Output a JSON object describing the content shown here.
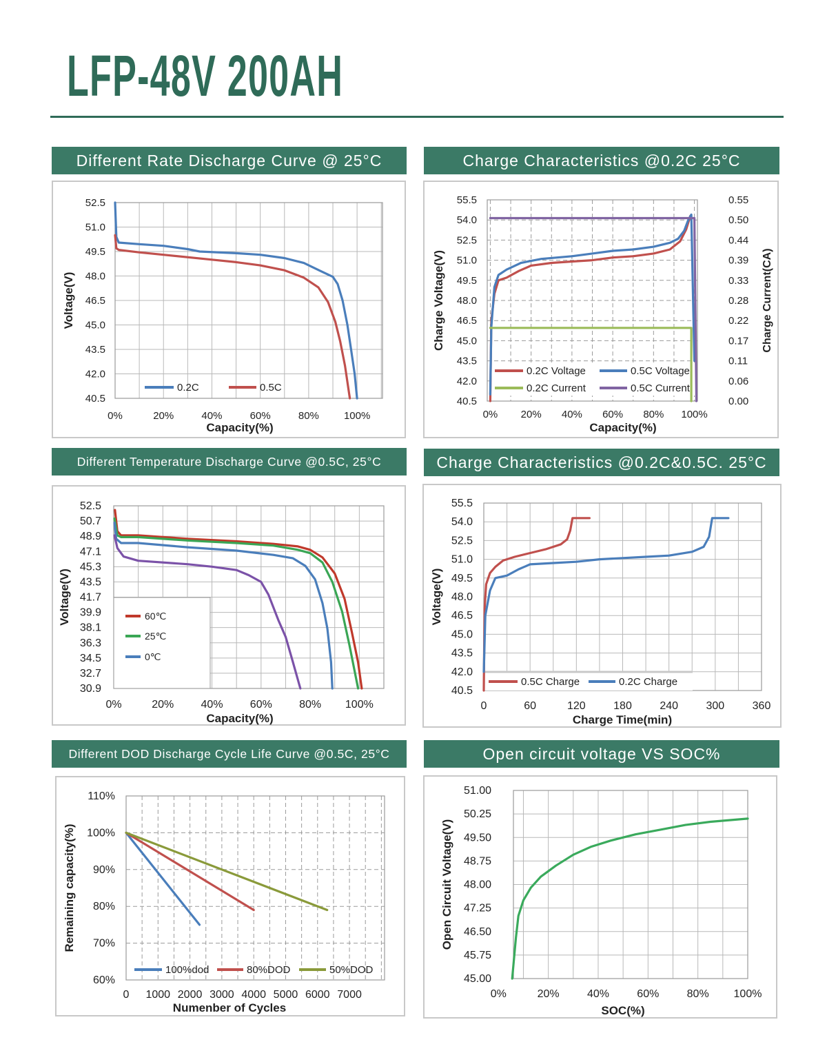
{
  "page_title": "LFP-48V 200AH",
  "colors": {
    "brand": "#2f6b58",
    "header_fill": "#3b7a66",
    "blue": "#4a7ebb",
    "red": "#c0504d",
    "green": "#9bbb59",
    "purple": "#8064a2",
    "green_temp": "#3aa655",
    "green_ocv": "#3aaa5c"
  },
  "chart_data": [
    {
      "title": "Different Rate Discharge Curve @ 25°C",
      "type": "line",
      "xlabel": "Capacity(%)",
      "ylabel": "Voltage(V)",
      "xlim": [
        0,
        110.5
      ],
      "ylim": [
        40.5,
        52.5
      ],
      "xticks": [
        "0%",
        "20%",
        "40%",
        "60%",
        "80%",
        "100%"
      ],
      "yticks": [
        "52.5",
        "51.0",
        "49.5",
        "48.0",
        "46.5",
        "45.0",
        "43.5",
        "42.0",
        "40.5"
      ],
      "grid": true,
      "legend": "bottom",
      "series": [
        {
          "name": "0.2C",
          "color": "#4a7ebb",
          "points": [
            [
              0,
              52.5
            ],
            [
              0.5,
              50.4
            ],
            [
              1.5,
              50.05
            ],
            [
              10,
              49.95
            ],
            [
              20,
              49.85
            ],
            [
              30,
              49.65
            ],
            [
              35,
              49.5
            ],
            [
              50,
              49.4
            ],
            [
              60,
              49.3
            ],
            [
              70,
              49.1
            ],
            [
              78,
              48.8
            ],
            [
              85,
              48.3
            ],
            [
              90,
              47.95
            ],
            [
              92,
              47.5
            ],
            [
              94,
              46.5
            ],
            [
              96,
              45.0
            ],
            [
              97.5,
              43.5
            ],
            [
              99,
              42.0
            ],
            [
              100,
              40.5
            ]
          ]
        },
        {
          "name": "0.5C",
          "color": "#c0504d",
          "points": [
            [
              0,
              50.5
            ],
            [
              0.5,
              49.7
            ],
            [
              1.5,
              49.6
            ],
            [
              10,
              49.45
            ],
            [
              20,
              49.3
            ],
            [
              40,
              49.0
            ],
            [
              50,
              48.85
            ],
            [
              60,
              48.65
            ],
            [
              70,
              48.35
            ],
            [
              78,
              47.9
            ],
            [
              84,
              47.3
            ],
            [
              88,
              46.4
            ],
            [
              91,
              45.2
            ],
            [
              93,
              44.0
            ],
            [
              95,
              42.5
            ],
            [
              97,
              40.5
            ]
          ]
        }
      ]
    },
    {
      "title": "Charge Characteristics @0.2C    25°C",
      "type": "line",
      "xlabel": "Capacity(%)",
      "ylabel": "Charge Voltage(V)",
      "y2label": "Charge Current(CA)",
      "xlim": [
        -1.5,
        101.5
      ],
      "ylim": [
        40.5,
        55.5
      ],
      "y2lim": [
        0,
        0.55
      ],
      "xticks": [
        "0%",
        "20%",
        "40%",
        "60%",
        "80%",
        "100%"
      ],
      "yticks": [
        "55.5",
        "54.0",
        "52.5",
        "51.0",
        "49.5",
        "48.0",
        "46.5",
        "45.0",
        "43.5",
        "42.0",
        "40.5"
      ],
      "y2ticks": [
        "0.55",
        "0.50",
        "0.44",
        "0.39",
        "0.33",
        "0.28",
        "0.22",
        "0.17",
        "0.11",
        "0.06",
        "0.00"
      ],
      "grid": "dashed",
      "legend": "bottom",
      "series": [
        {
          "name": "0.2C Voltage",
          "color": "#c0504d",
          "axis": "left",
          "points": [
            [
              0,
              40.5
            ],
            [
              0.5,
              46.5
            ],
            [
              2,
              48.5
            ],
            [
              4,
              49.5
            ],
            [
              8,
              49.7
            ],
            [
              14,
              50.2
            ],
            [
              20,
              50.6
            ],
            [
              30,
              50.8
            ],
            [
              40,
              50.9
            ],
            [
              50,
              51.0
            ],
            [
              60,
              51.2
            ],
            [
              70,
              51.3
            ],
            [
              80,
              51.5
            ],
            [
              88,
              51.8
            ],
            [
              93,
              52.4
            ],
            [
              96,
              53.3
            ],
            [
              98,
              54.3
            ]
          ]
        },
        {
          "name": "0.5C Voltage",
          "color": "#4a7ebb",
          "axis": "left",
          "points": [
            [
              0,
              41
            ],
            [
              0.5,
              46
            ],
            [
              2,
              49
            ],
            [
              4,
              49.9
            ],
            [
              8,
              50.3
            ],
            [
              15,
              50.8
            ],
            [
              25,
              51.1
            ],
            [
              40,
              51.3
            ],
            [
              50,
              51.5
            ],
            [
              60,
              51.7
            ],
            [
              70,
              51.8
            ],
            [
              80,
              52.0
            ],
            [
              88,
              52.3
            ],
            [
              92,
              52.6
            ],
            [
              95,
              53.2
            ],
            [
              97,
              54.0
            ],
            [
              98.5,
              54.4
            ],
            [
              99.5,
              47
            ],
            [
              100,
              43.5
            ]
          ]
        },
        {
          "name": "0.2C Current",
          "color": "#9bbb59",
          "axis": "right",
          "points": [
            [
              0,
              0.2
            ],
            [
              98.5,
              0.2
            ],
            [
              98.5,
              0.0
            ]
          ]
        },
        {
          "name": "0.5C Current",
          "color": "#8064a2",
          "axis": "right",
          "points": [
            [
              0,
              0.5
            ],
            [
              99,
              0.5
            ],
            [
              100,
              0.5
            ],
            [
              101,
              0.0
            ]
          ]
        }
      ]
    },
    {
      "title": "Different Temperature Discharge Curve @0.5C, 25°C",
      "type": "line",
      "xlabel": "Capacity(%)",
      "ylabel": "Voltage(V)",
      "xlim": [
        0,
        110
      ],
      "ylim": [
        30.9,
        52.5
      ],
      "xticks": [
        "0%",
        "20%",
        "40%",
        "60%",
        "80%",
        "100%"
      ],
      "yticks": [
        "52.5",
        "50.7",
        "48.9",
        "47.1",
        "45.3",
        "43.5",
        "41.7",
        "39.9",
        "38.1",
        "36.3",
        "34.5",
        "32.7",
        "30.9"
      ],
      "grid": true,
      "legend": "lower-left",
      "series": [
        {
          "name": "60℃",
          "color": "#c0392b",
          "points": [
            [
              0.5,
              52.0
            ],
            [
              1.5,
              49.5
            ],
            [
              3,
              49.0
            ],
            [
              10,
              49.0
            ],
            [
              30,
              48.6
            ],
            [
              50,
              48.3
            ],
            [
              65,
              48.0
            ],
            [
              75,
              47.7
            ],
            [
              80,
              47.3
            ],
            [
              85,
              46.4
            ],
            [
              90,
              44.5
            ],
            [
              94,
              41.5
            ],
            [
              97,
              37.5
            ],
            [
              99.5,
              34
            ],
            [
              101,
              30.9
            ]
          ]
        },
        {
          "name": "25℃",
          "color": "#3aa655",
          "points": [
            [
              0.3,
              51
            ],
            [
              1.5,
              49.0
            ],
            [
              3,
              48.8
            ],
            [
              10,
              48.8
            ],
            [
              30,
              48.4
            ],
            [
              50,
              48.1
            ],
            [
              65,
              47.8
            ],
            [
              75,
              47.3
            ],
            [
              80,
              46.9
            ],
            [
              85,
              45.8
            ],
            [
              89,
              43.5
            ],
            [
              93,
              40.0
            ],
            [
              96,
              36
            ],
            [
              99.5,
              30.9
            ]
          ]
        },
        {
          "name": "0℃",
          "color": "#4a7ebb",
          "points": [
            [
              0.3,
              50.5
            ],
            [
              1,
              48.6
            ],
            [
              3,
              48.1
            ],
            [
              10,
              48.1
            ],
            [
              30,
              47.6
            ],
            [
              50,
              47.2
            ],
            [
              65,
              46.7
            ],
            [
              73,
              46.3
            ],
            [
              78,
              45.4
            ],
            [
              82,
              43.8
            ],
            [
              85,
              41
            ],
            [
              87,
              38
            ],
            [
              88.5,
              34
            ],
            [
              89,
              30.9
            ]
          ]
        },
        {
          "color": "#7b52a8",
          "points": [
            [
              0.3,
              49
            ],
            [
              1.5,
              47.5
            ],
            [
              4,
              46.5
            ],
            [
              10,
              46.0
            ],
            [
              30,
              45.6
            ],
            [
              40,
              45.3
            ],
            [
              50,
              44.9
            ],
            [
              55,
              44.3
            ],
            [
              60,
              43.5
            ],
            [
              63,
              42
            ],
            [
              67,
              39
            ],
            [
              70,
              37
            ],
            [
              73,
              34
            ],
            [
              76,
              30.9
            ]
          ]
        }
      ]
    },
    {
      "title": "Charge Characteristics @0.2C&0.5C. 25°C",
      "type": "line",
      "xlabel": "Charge Time(min)",
      "ylabel": "Voltage(V)",
      "xlim": [
        0,
        360
      ],
      "ylim": [
        40.5,
        55.5
      ],
      "xticks": [
        "0",
        "60",
        "120",
        "180",
        "240",
        "300",
        "360"
      ],
      "yticks": [
        "55.5",
        "54.0",
        "52.5",
        "51.0",
        "49.5",
        "48.0",
        "46.5",
        "45.0",
        "43.5",
        "42.0",
        "40.5"
      ],
      "grid": true,
      "legend": "bottom",
      "series": [
        {
          "name": "0.5C Charge",
          "color": "#c0504d",
          "points": [
            [
              0,
              40.5
            ],
            [
              1,
              47
            ],
            [
              3,
              49
            ],
            [
              8,
              49.9
            ],
            [
              15,
              50.4
            ],
            [
              25,
              50.9
            ],
            [
              40,
              51.2
            ],
            [
              60,
              51.5
            ],
            [
              80,
              51.8
            ],
            [
              100,
              52.2
            ],
            [
              108,
              52.6
            ],
            [
              112,
              53.3
            ],
            [
              115,
              54.3
            ],
            [
              137,
              54.3
            ]
          ]
        },
        {
          "name": "0.2C Charge",
          "color": "#4a7ebb",
          "points": [
            [
              0,
              42
            ],
            [
              2,
              46.5
            ],
            [
              8,
              48.5
            ],
            [
              15,
              49.5
            ],
            [
              30,
              49.7
            ],
            [
              45,
              50.2
            ],
            [
              60,
              50.6
            ],
            [
              90,
              50.7
            ],
            [
              120,
              50.8
            ],
            [
              150,
              51.0
            ],
            [
              180,
              51.1
            ],
            [
              210,
              51.2
            ],
            [
              240,
              51.3
            ],
            [
              270,
              51.6
            ],
            [
              285,
              52.0
            ],
            [
              292,
              52.8
            ],
            [
              296,
              54.3
            ],
            [
              317,
              54.3
            ]
          ]
        }
      ]
    },
    {
      "title": "Different DOD Discharge Cycle Life Curve @0.5C, 25°C",
      "type": "line",
      "xlabel": "Numenber of Cycles",
      "ylabel": "Remaining capacity(%)",
      "xlim": [
        0,
        8100
      ],
      "ylim": [
        60,
        110
      ],
      "xticks": [
        "0",
        "1000",
        "2000",
        "3000",
        "4000",
        "5000",
        "6000",
        "7000"
      ],
      "yticks": [
        "110%",
        "100%",
        "90%",
        "80%",
        "70%",
        "60%"
      ],
      "grid": "dashed",
      "legend": "bottom",
      "series": [
        {
          "name": "100%dod",
          "color": "#4a7ebb",
          "points": [
            [
              0,
              100
            ],
            [
              2300,
              75
            ]
          ]
        },
        {
          "name": "80%DOD",
          "color": "#c0504d",
          "points": [
            [
              0,
              100
            ],
            [
              4000,
              79
            ]
          ]
        },
        {
          "name": "50%DOD",
          "color": "#8a9a3a",
          "points": [
            [
              0,
              100
            ],
            [
              6300,
              79
            ]
          ]
        }
      ]
    },
    {
      "title": "Open circuit voltage VS SOC%",
      "type": "line",
      "xlabel": "SOC(%)",
      "ylabel": "Open Circuit Voltage(V)",
      "xlim": [
        6,
        100
      ],
      "ylim": [
        45,
        51
      ],
      "xticks": [
        "0%",
        "20%",
        "40%",
        "60%",
        "80%",
        "100%"
      ],
      "yticks": [
        "51.00",
        "50.25",
        "49.50",
        "48.75",
        "48.00",
        "47.25",
        "46.50",
        "45.75",
        "45.00"
      ],
      "grid": true,
      "legend": "none",
      "series": [
        {
          "color": "#3aaa5c",
          "points": [
            [
              5.5,
              45.0
            ],
            [
              7,
              46.3
            ],
            [
              8,
              47.0
            ],
            [
              10,
              47.5
            ],
            [
              13,
              47.9
            ],
            [
              17,
              48.25
            ],
            [
              23,
              48.6
            ],
            [
              30,
              48.95
            ],
            [
              37,
              49.2
            ],
            [
              45,
              49.4
            ],
            [
              55,
              49.6
            ],
            [
              65,
              49.75
            ],
            [
              75,
              49.9
            ],
            [
              85,
              50.0
            ],
            [
              100,
              50.1
            ]
          ]
        }
      ]
    }
  ]
}
